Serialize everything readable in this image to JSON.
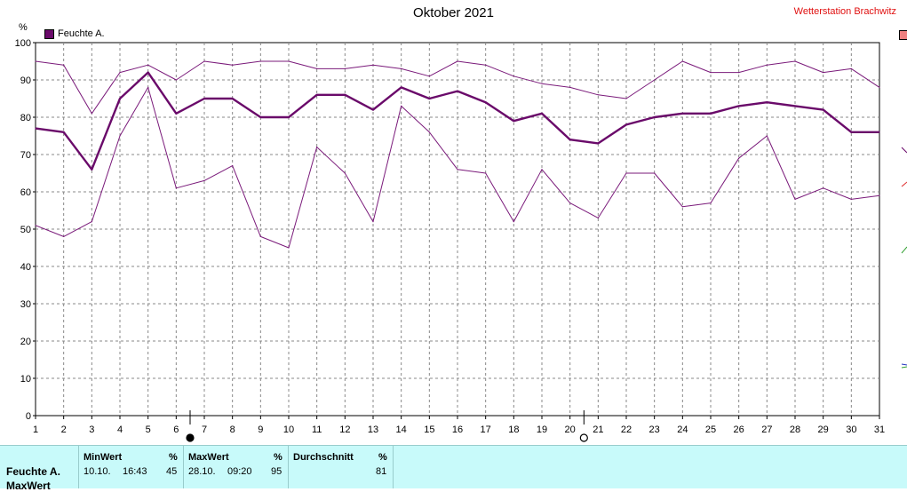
{
  "header": {
    "title": "Oktober 2021",
    "station": "Wetterstation Brachwitz",
    "unit": "%"
  },
  "legend": {
    "label": "Feuchte A.",
    "color": "#6a0a6a"
  },
  "chart_data": {
    "type": "line",
    "title": "Oktober 2021",
    "xlabel": "",
    "ylabel": "%",
    "xlim": [
      1,
      31
    ],
    "ylim": [
      0,
      100
    ],
    "grid": true,
    "legend_position": "top-left",
    "x": [
      1,
      2,
      3,
      4,
      5,
      6,
      7,
      8,
      9,
      10,
      11,
      12,
      13,
      14,
      15,
      16,
      17,
      18,
      19,
      20,
      21,
      22,
      23,
      24,
      25,
      26,
      27,
      28,
      29,
      30,
      31
    ],
    "x_ticks": [
      1,
      2,
      3,
      4,
      5,
      6,
      7,
      8,
      9,
      10,
      11,
      12,
      13,
      14,
      15,
      16,
      17,
      18,
      19,
      20,
      21,
      22,
      23,
      24,
      25,
      26,
      27,
      28,
      29,
      30,
      31
    ],
    "y_ticks": [
      0,
      10,
      20,
      30,
      40,
      50,
      60,
      70,
      80,
      90,
      100
    ],
    "series": [
      {
        "name": "Feuchte A.",
        "role": "mean",
        "color": "#6a0a6a",
        "values": [
          77,
          76,
          66,
          85,
          92,
          81,
          85,
          85,
          80,
          80,
          86,
          86,
          82,
          88,
          85,
          87,
          84,
          79,
          81,
          74,
          73,
          78,
          80,
          81,
          81,
          83,
          84,
          83,
          82,
          76,
          76
        ]
      },
      {
        "role": "max",
        "color": "#7a1a7a",
        "values": [
          95,
          94,
          81,
          92,
          94,
          90,
          95,
          94,
          95,
          95,
          93,
          93,
          94,
          93,
          91,
          95,
          94,
          91,
          89,
          88,
          86,
          85,
          90,
          95,
          92,
          92,
          94,
          95,
          92,
          93,
          88
        ]
      },
      {
        "role": "min",
        "color": "#7a1a7a",
        "values": [
          51,
          48,
          52,
          75,
          88,
          61,
          63,
          67,
          48,
          45,
          72,
          65,
          52,
          83,
          76,
          66,
          65,
          52,
          66,
          57,
          53,
          65,
          65,
          56,
          57,
          69,
          75,
          58,
          61,
          58,
          59
        ]
      }
    ],
    "markers": [
      {
        "x": 7,
        "symbol": "filled-circle",
        "meaning": "moon phase"
      },
      {
        "x": 21,
        "symbol": "open-circle",
        "meaning": "moon phase"
      }
    ]
  },
  "table": {
    "row_label": "Feuchte A.",
    "row_label_2": "MaxWert",
    "columns": [
      {
        "header": "MinWert",
        "unit": "%",
        "date": "10.10.",
        "time": "16:43",
        "value": "45"
      },
      {
        "header": "MaxWert",
        "unit": "%",
        "date": "28.10.",
        "time": "09:20",
        "value": "95"
      },
      {
        "header": "Durchschnitt",
        "unit": "%",
        "value": "81"
      }
    ]
  }
}
